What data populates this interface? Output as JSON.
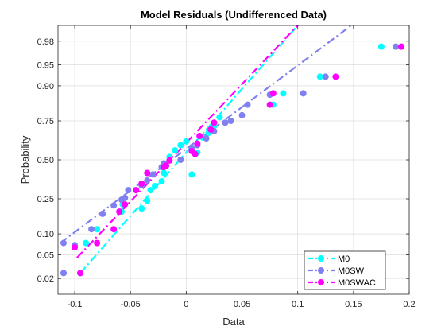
{
  "chart_data": {
    "type": "scatter",
    "title": "Model  Residuals  (Undifferenced  Data)",
    "xlabel": "Data",
    "ylabel": "Probability",
    "xlim": [
      -0.115,
      0.2
    ],
    "ylim": [
      0.01,
      0.99
    ],
    "y_scale": "normal-probability",
    "grid": true,
    "legend_position": "bottom-right",
    "x_ticks": [
      -0.1,
      -0.05,
      0,
      0.05,
      0.1,
      0.15,
      0.2
    ],
    "x_tick_labels": [
      "-0.1",
      "-0.05",
      "0",
      "0.05",
      "0.1",
      "0.15",
      "0.2"
    ],
    "y_ticks": [
      0.02,
      0.05,
      0.1,
      0.25,
      0.5,
      0.75,
      0.9,
      0.95,
      0.98
    ],
    "y_tick_labels": [
      "0.02",
      "0.05",
      "0.10",
      "0.25",
      "0.50",
      "0.75",
      "0.90",
      "0.95",
      "0.98"
    ],
    "series": [
      {
        "name": "M0",
        "color": "#00ffff",
        "line_style": "dash-dot",
        "points": [
          [
            -0.095,
            0.025
          ],
          [
            -0.09,
            0.075
          ],
          [
            -0.08,
            0.115
          ],
          [
            -0.058,
            0.185
          ],
          [
            -0.057,
            0.22
          ],
          [
            -0.055,
            0.255
          ],
          [
            -0.04,
            0.2
          ],
          [
            -0.035,
            0.24
          ],
          [
            -0.032,
            0.3
          ],
          [
            -0.028,
            0.325
          ],
          [
            -0.022,
            0.355
          ],
          [
            -0.02,
            0.41
          ],
          [
            -0.018,
            0.46
          ],
          [
            -0.015,
            0.52
          ],
          [
            -0.01,
            0.565
          ],
          [
            -0.005,
            0.6
          ],
          [
            0.0,
            0.625
          ],
          [
            0.005,
            0.4
          ],
          [
            0.01,
            0.55
          ],
          [
            0.015,
            0.65
          ],
          [
            0.02,
            0.68
          ],
          [
            0.025,
            0.72
          ],
          [
            0.03,
            0.77
          ],
          [
            0.078,
            0.83
          ],
          [
            0.087,
            0.875
          ],
          [
            0.12,
            0.925
          ],
          [
            0.175,
            0.975
          ]
        ],
        "fit": [
          [
            -0.095,
            0.025
          ],
          [
            0.1,
            0.99
          ]
        ]
      },
      {
        "name": "M0SW",
        "color": "#8080f0",
        "line_style": "dash-dot",
        "points": [
          [
            -0.11,
            0.025
          ],
          [
            -0.11,
            0.075
          ],
          [
            -0.1,
            0.07
          ],
          [
            -0.085,
            0.115
          ],
          [
            -0.075,
            0.175
          ],
          [
            -0.065,
            0.215
          ],
          [
            -0.058,
            0.245
          ],
          [
            -0.055,
            0.255
          ],
          [
            -0.052,
            0.3
          ],
          [
            -0.045,
            0.3
          ],
          [
            -0.04,
            0.33
          ],
          [
            -0.035,
            0.36
          ],
          [
            -0.03,
            0.4
          ],
          [
            -0.022,
            0.45
          ],
          [
            -0.02,
            0.475
          ],
          [
            -0.005,
            0.5
          ],
          [
            0.005,
            0.58
          ],
          [
            0.01,
            0.6
          ],
          [
            0.018,
            0.645
          ],
          [
            0.025,
            0.69
          ],
          [
            0.035,
            0.74
          ],
          [
            0.04,
            0.75
          ],
          [
            0.05,
            0.78
          ],
          [
            0.055,
            0.83
          ],
          [
            0.075,
            0.87
          ],
          [
            0.105,
            0.875
          ],
          [
            0.125,
            0.925
          ],
          [
            0.188,
            0.975
          ]
        ],
        "fit": [
          [
            -0.113,
            0.075
          ],
          [
            0.148,
            0.99
          ]
        ]
      },
      {
        "name": "M0SWAC",
        "color": "#ff00ff",
        "line_style": "dash-dot",
        "points": [
          [
            -0.095,
            0.025
          ],
          [
            -0.1,
            0.065
          ],
          [
            -0.08,
            0.075
          ],
          [
            -0.065,
            0.115
          ],
          [
            -0.06,
            0.185
          ],
          [
            -0.055,
            0.22
          ],
          [
            -0.045,
            0.3
          ],
          [
            -0.04,
            0.34
          ],
          [
            -0.035,
            0.41
          ],
          [
            -0.02,
            0.45
          ],
          [
            -0.018,
            0.46
          ],
          [
            -0.015,
            0.495
          ],
          [
            0.005,
            0.56
          ],
          [
            0.008,
            0.54
          ],
          [
            0.01,
            0.61
          ],
          [
            0.012,
            0.66
          ],
          [
            0.022,
            0.7
          ],
          [
            0.025,
            0.74
          ],
          [
            0.075,
            0.83
          ],
          [
            0.078,
            0.875
          ],
          [
            0.134,
            0.925
          ],
          [
            0.193,
            0.975
          ]
        ],
        "fit": [
          [
            -0.098,
            0.045
          ],
          [
            0.1,
            0.99
          ]
        ]
      }
    ]
  }
}
